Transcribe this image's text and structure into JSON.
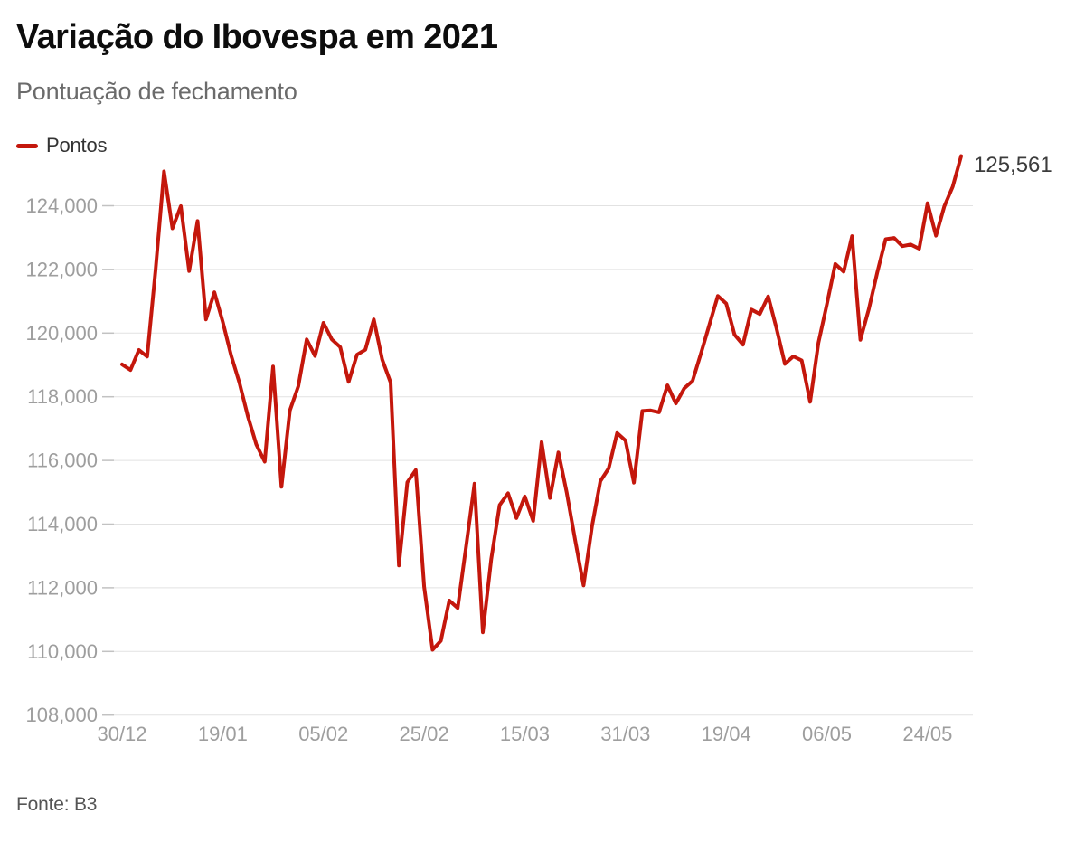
{
  "header": {
    "title": "Variação do Ibovespa em 2021",
    "subtitle": "Pontuação de fechamento"
  },
  "legend": {
    "label": "Pontos",
    "swatch_color": "#c4170c"
  },
  "annotation": {
    "last_value_label": "125,561"
  },
  "footer": {
    "source": "Fonte: B3"
  },
  "colors": {
    "line": "#c4170c",
    "grid": "#e2e2e2",
    "tick": "#c2c2c2",
    "axis_label": "#9e9e9e",
    "annotation_text": "#3c3c3c",
    "background": "#ffffff"
  },
  "chart_data": {
    "type": "line",
    "title": "Variação do Ibovespa em 2021",
    "subtitle": "Pontuação de fechamento",
    "grid": true,
    "legend_position": "top-left",
    "y_axis": {
      "min": 108000,
      "max": 124000,
      "step": 2000,
      "tick_labels": [
        "108,000",
        "110,000",
        "112,000",
        "114,000",
        "116,000",
        "118,000",
        "120,000",
        "122,000",
        "124,000"
      ]
    },
    "x_ticks": [
      {
        "index": 0,
        "label": "30/12"
      },
      {
        "index": 12,
        "label": "19/01"
      },
      {
        "index": 24,
        "label": "05/02"
      },
      {
        "index": 36,
        "label": "25/02"
      },
      {
        "index": 48,
        "label": "15/03"
      },
      {
        "index": 60,
        "label": "31/03"
      },
      {
        "index": 72,
        "label": "19/04"
      },
      {
        "index": 84,
        "label": "06/05"
      },
      {
        "index": 96,
        "label": "24/05"
      }
    ],
    "series": [
      {
        "name": "Pontos",
        "color": "#c4170c",
        "values": [
          119017,
          118840,
          119470,
          119260,
          122000,
          125080,
          123290,
          123990,
          121950,
          123520,
          120430,
          121280,
          120350,
          119300,
          118430,
          117380,
          116500,
          115960,
          118950,
          115170,
          117570,
          118330,
          119800,
          119280,
          120320,
          119800,
          119560,
          118470,
          119320,
          119480,
          120430,
          119170,
          118450,
          112700,
          115315,
          115700,
          112030,
          110050,
          110335,
          111600,
          111365,
          113300,
          115270,
          110600,
          112900,
          114600,
          114970,
          114190,
          114870,
          114100,
          116580,
          114820,
          116250,
          114990,
          113500,
          112075,
          113920,
          115350,
          115750,
          116860,
          116625,
          115300,
          117555,
          117570,
          117510,
          118360,
          117790,
          118265,
          118500,
          119366,
          120265,
          121165,
          120930,
          119950,
          119635,
          120740,
          120600,
          121150,
          120150,
          119030,
          119270,
          119140,
          117840,
          119700,
          120900,
          122170,
          121930,
          123045,
          119790,
          120750,
          121900,
          122950,
          122990,
          122730,
          122780,
          122650,
          124080,
          123060,
          123980,
          124600,
          125561
        ],
        "last_value": 125561
      }
    ]
  }
}
